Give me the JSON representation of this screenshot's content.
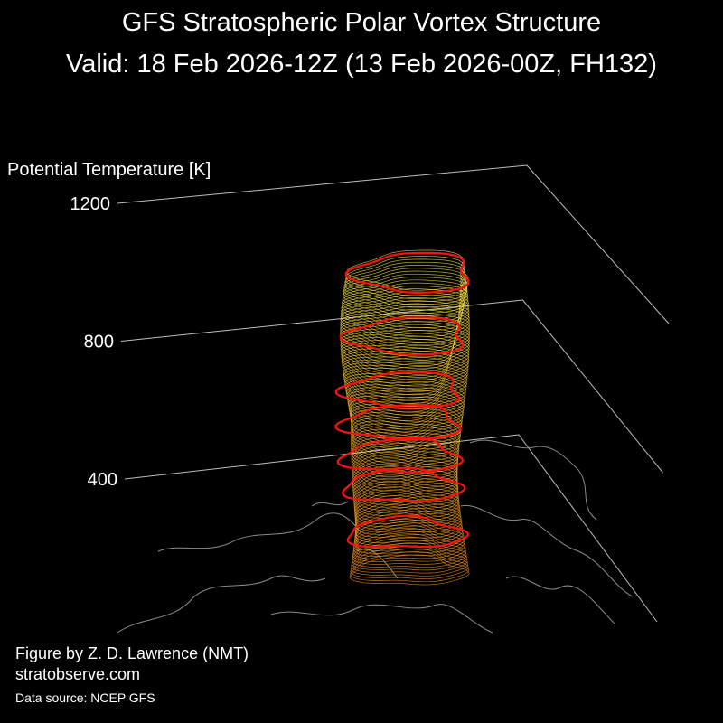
{
  "chart_data": {
    "type": "vortex3d",
    "title": "GFS Stratospheric Polar Vortex Structure",
    "subtitle": "Valid: 18 Feb 2026-12Z  (13 Feb 2026-00Z, FH132)",
    "z_label": "Potential Temperature [K]",
    "zlim": [
      400,
      1200
    ],
    "zticks": [
      400,
      800,
      1200
    ],
    "grid": true,
    "credit": "Figure by Z. D. Lawrence (NMT)",
    "website": "stratobserve.com",
    "source": "Data source: NCEP GFS"
  }
}
